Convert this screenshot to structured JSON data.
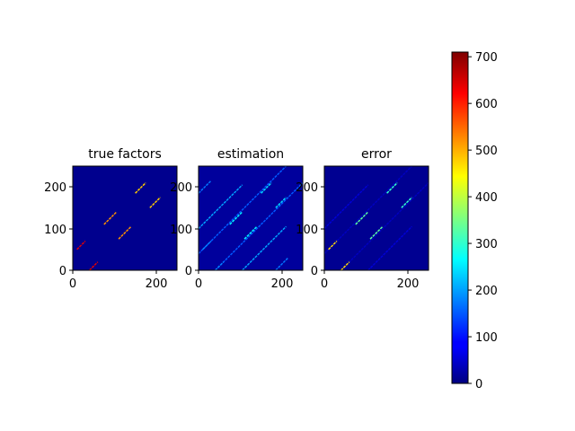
{
  "chart_data": {
    "type": "heatmap",
    "colormap": "jet",
    "colorbar": {
      "range": [
        0,
        710
      ],
      "ticks": [
        "0",
        "100",
        "200",
        "300",
        "400",
        "500",
        "600",
        "700"
      ]
    },
    "panels": [
      {
        "title": "true factors",
        "xlim": [
          0,
          250
        ],
        "ylim": [
          0,
          250
        ],
        "xticks": [
          "0",
          "200"
        ],
        "yticks": [
          "0",
          "100",
          "200"
        ],
        "background_value": 10,
        "stripes": [
          {
            "x": [
              10,
              30
            ],
            "y": [
              50,
              70
            ],
            "value": 640
          },
          {
            "x": [
              40,
              60
            ],
            "y": [
              0,
              20
            ],
            "value": 640
          },
          {
            "x": [
              75,
              105
            ],
            "y": [
              110,
              140
            ],
            "value": 520
          },
          {
            "x": [
              110,
              140
            ],
            "y": [
              75,
              105
            ],
            "value": 520
          },
          {
            "x": [
              150,
              175
            ],
            "y": [
              185,
              210
            ],
            "value": 480
          },
          {
            "x": [
              185,
              210
            ],
            "y": [
              150,
              175
            ],
            "value": 480
          }
        ]
      },
      {
        "title": "estimation",
        "xlim": [
          0,
          250
        ],
        "ylim": [
          0,
          250
        ],
        "xticks": [
          "0",
          "200"
        ],
        "yticks": [
          "0",
          "100",
          "200"
        ],
        "background_value": 20,
        "stripes": [
          {
            "x": [
              0,
              30
            ],
            "y": [
              185,
              215
            ],
            "value": 170
          },
          {
            "x": [
              0,
              105
            ],
            "y": [
              100,
              205
            ],
            "value": 200
          },
          {
            "x": [
              0,
              210
            ],
            "y": [
              40,
              250
            ],
            "value": 150
          },
          {
            "x": [
              40,
              250
            ],
            "y": [
              0,
              210
            ],
            "value": 150
          },
          {
            "x": [
              105,
              210
            ],
            "y": [
              0,
              105
            ],
            "value": 200
          },
          {
            "x": [
              185,
              215
            ],
            "y": [
              0,
              30
            ],
            "value": 170
          },
          {
            "x": [
              75,
              105
            ],
            "y": [
              110,
              140
            ],
            "value": 260
          },
          {
            "x": [
              110,
              140
            ],
            "y": [
              75,
              105
            ],
            "value": 260
          },
          {
            "x": [
              150,
              175
            ],
            "y": [
              185,
              210
            ],
            "value": 240
          },
          {
            "x": [
              185,
              210
            ],
            "y": [
              150,
              175
            ],
            "value": 240
          },
          {
            "x": [
              10,
              30
            ],
            "y": [
              50,
              70
            ],
            "value": 180
          },
          {
            "x": [
              40,
              60
            ],
            "y": [
              0,
              20
            ],
            "value": 180
          }
        ]
      },
      {
        "title": "error",
        "xlim": [
          0,
          250
        ],
        "ylim": [
          0,
          250
        ],
        "xticks": [
          "0",
          "200"
        ],
        "yticks": [
          "0",
          "100",
          "200"
        ],
        "background_value": 12,
        "stripes": [
          {
            "x": [
              0,
              105
            ],
            "y": [
              100,
              205
            ],
            "value": 60
          },
          {
            "x": [
              0,
              210
            ],
            "y": [
              40,
              250
            ],
            "value": 45
          },
          {
            "x": [
              40,
              250
            ],
            "y": [
              0,
              210
            ],
            "value": 45
          },
          {
            "x": [
              105,
              210
            ],
            "y": [
              0,
              105
            ],
            "value": 60
          },
          {
            "x": [
              10,
              30
            ],
            "y": [
              50,
              70
            ],
            "value": 470
          },
          {
            "x": [
              40,
              60
            ],
            "y": [
              0,
              20
            ],
            "value": 470
          },
          {
            "x": [
              75,
              105
            ],
            "y": [
              110,
              140
            ],
            "value": 330
          },
          {
            "x": [
              110,
              140
            ],
            "y": [
              75,
              105
            ],
            "value": 330
          },
          {
            "x": [
              150,
              175
            ],
            "y": [
              185,
              210
            ],
            "value": 300
          },
          {
            "x": [
              185,
              210
            ],
            "y": [
              150,
              175
            ],
            "value": 300
          }
        ]
      }
    ]
  }
}
